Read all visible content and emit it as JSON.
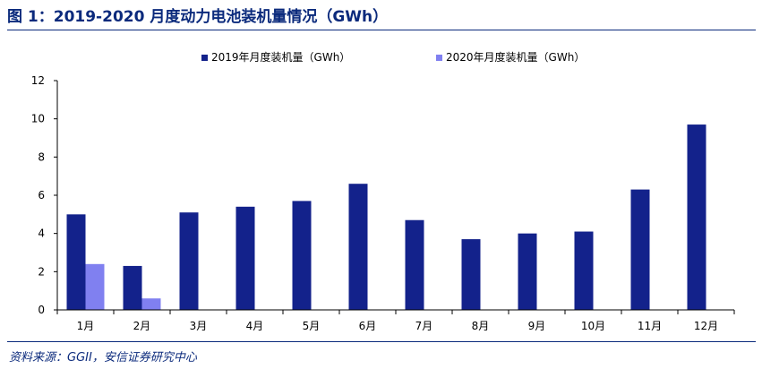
{
  "title": "图 1：2019-2020 月度动力电池装机量情况（GWh）",
  "source": "资料来源：GGII，安信证券研究中心",
  "colors": {
    "series_2019": "#13228b",
    "series_2020": "#8080f0",
    "accent": "#0b2a7c"
  },
  "chart_data": {
    "type": "bar",
    "categories": [
      "1月",
      "2月",
      "3月",
      "4月",
      "5月",
      "6月",
      "7月",
      "8月",
      "9月",
      "10月",
      "11月",
      "12月"
    ],
    "series": [
      {
        "name": "2019年月度装机量（GWh）",
        "values": [
          5.0,
          2.3,
          5.1,
          5.4,
          5.7,
          6.6,
          4.7,
          3.7,
          4.0,
          4.1,
          6.3,
          9.7
        ]
      },
      {
        "name": "2020年月度装机量（GWh）",
        "values": [
          2.4,
          0.6,
          null,
          null,
          null,
          null,
          null,
          null,
          null,
          null,
          null,
          null
        ]
      }
    ],
    "ylim": [
      0,
      12
    ],
    "yticks": [
      0,
      2,
      4,
      6,
      8,
      10,
      12
    ],
    "grid": false,
    "legend": "top"
  }
}
